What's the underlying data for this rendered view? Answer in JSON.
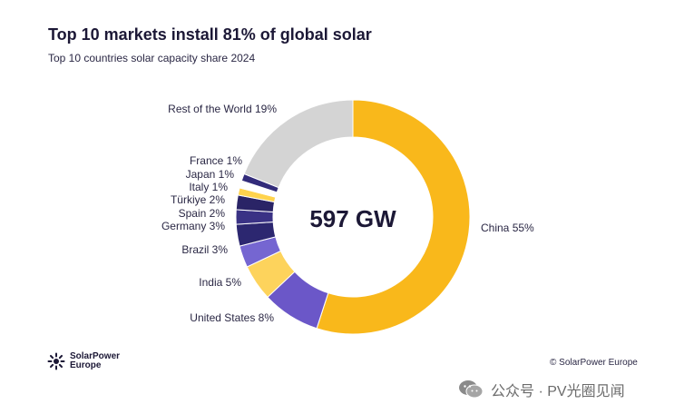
{
  "title": "Top 10 markets install 81% of global solar",
  "subtitle": "Top 10 countries solar capacity share 2024",
  "chart_data": {
    "type": "pie",
    "variant": "donut",
    "center_label": "597 GW",
    "slices": [
      {
        "name": "China",
        "value": 55,
        "label": "China 55%",
        "color": "#f9b81b"
      },
      {
        "name": "United States",
        "value": 8,
        "label": "United States 8%",
        "color": "#6b57c8"
      },
      {
        "name": "India",
        "value": 5,
        "label": "India 5%",
        "color": "#fdd35c"
      },
      {
        "name": "Brazil",
        "value": 3,
        "label": "Brazil 3%",
        "color": "#7566d1"
      },
      {
        "name": "Germany",
        "value": 3,
        "label": "Germany 3%",
        "color": "#2c2770"
      },
      {
        "name": "Spain",
        "value": 2,
        "label": "Spain 2%",
        "color": "#3a3285"
      },
      {
        "name": "Türkiye",
        "value": 2,
        "label": "Türkiye 2%",
        "color": "#2a2466"
      },
      {
        "name": "Italy",
        "value": 1,
        "label": "Italy 1%",
        "color": "#ffd34d"
      },
      {
        "name": "Japan",
        "value": 1,
        "label": "Japan 1%",
        "color": "#ffffff"
      },
      {
        "name": "France",
        "value": 1,
        "label": "France 1%",
        "color": "#322b7a"
      },
      {
        "name": "Rest of the World",
        "value": 19,
        "label": "Rest of the World 19%",
        "color": "#d4d4d4"
      }
    ]
  },
  "footer": {
    "logo_line1": "SolarPower",
    "logo_line2": "Europe",
    "copyright": "© SolarPower Europe",
    "watermark": "公众号 · PV光圈见闻"
  }
}
